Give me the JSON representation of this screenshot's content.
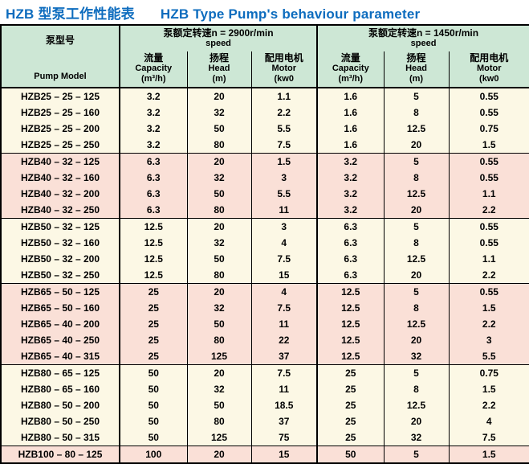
{
  "title": {
    "zh": "HZB 型泵工作性能表",
    "en": "HZB Type Pump's behaviour parameter"
  },
  "colors": {
    "title_blue": "#0d6cbe",
    "header_green": "#cde7d5",
    "row_cream": "#fcf8e5",
    "row_pink": "#fae0d7",
    "border": "#000000"
  },
  "table": {
    "model_header": {
      "zh": "泵型号",
      "en": "Pump Model"
    },
    "sections": [
      {
        "line1": "泵额定转速n = 2900r/min",
        "line2": "speed"
      },
      {
        "line1": "泵额定转速n = 1450r/min",
        "line2": "speed"
      }
    ],
    "subcolumns": [
      {
        "zh": "流量",
        "en": "Capacity",
        "unit": "(m³/h)"
      },
      {
        "zh": "扬程",
        "en": "Head",
        "unit": "(m)"
      },
      {
        "zh": "配用电机",
        "en": "Motor",
        "unit": "(kw0"
      }
    ],
    "rows": [
      {
        "model": "HZB25 – 25 – 125",
        "group": 0,
        "values": [
          "3.2",
          "20",
          "1.1",
          "1.6",
          "5",
          "0.55"
        ]
      },
      {
        "model": "HZB25 – 25 – 160",
        "group": 0,
        "values": [
          "3.2",
          "32",
          "2.2",
          "1.6",
          "8",
          "0.55"
        ]
      },
      {
        "model": "HZB25 – 25 – 200",
        "group": 0,
        "values": [
          "3.2",
          "50",
          "5.5",
          "1.6",
          "12.5",
          "0.75"
        ]
      },
      {
        "model": "HZB25 – 25 – 250",
        "group": 0,
        "values": [
          "3.2",
          "80",
          "7.5",
          "1.6",
          "20",
          "1.5"
        ]
      },
      {
        "model": "HZB40 – 32 – 125",
        "group": 1,
        "values": [
          "6.3",
          "20",
          "1.5",
          "3.2",
          "5",
          "0.55"
        ]
      },
      {
        "model": "HZB40 – 32 – 160",
        "group": 1,
        "values": [
          "6.3",
          "32",
          "3",
          "3.2",
          "8",
          "0.55"
        ]
      },
      {
        "model": "HZB40 – 32 – 200",
        "group": 1,
        "values": [
          "6.3",
          "50",
          "5.5",
          "3.2",
          "12.5",
          "1.1"
        ]
      },
      {
        "model": "HZB40 – 32 – 250",
        "group": 1,
        "values": [
          "6.3",
          "80",
          "11",
          "3.2",
          "20",
          "2.2"
        ]
      },
      {
        "model": "HZB50 – 32 – 125",
        "group": 2,
        "values": [
          "12.5",
          "20",
          "3",
          "6.3",
          "5",
          "0.55"
        ]
      },
      {
        "model": "HZB50 – 32 – 160",
        "group": 2,
        "values": [
          "12.5",
          "32",
          "4",
          "6.3",
          "8",
          "0.55"
        ]
      },
      {
        "model": "HZB50 – 32 – 200",
        "group": 2,
        "values": [
          "12.5",
          "50",
          "7.5",
          "6.3",
          "12.5",
          "1.1"
        ]
      },
      {
        "model": "HZB50 – 32 – 250",
        "group": 2,
        "values": [
          "12.5",
          "80",
          "15",
          "6.3",
          "20",
          "2.2"
        ]
      },
      {
        "model": "HZB65 – 50 – 125",
        "group": 3,
        "values": [
          "25",
          "20",
          "4",
          "12.5",
          "5",
          "0.55"
        ]
      },
      {
        "model": "HZB65 – 50 – 160",
        "group": 3,
        "values": [
          "25",
          "32",
          "7.5",
          "12.5",
          "8",
          "1.5"
        ]
      },
      {
        "model": "HZB65 – 40 – 200",
        "group": 3,
        "values": [
          "25",
          "50",
          "11",
          "12.5",
          "12.5",
          "2.2"
        ]
      },
      {
        "model": "HZB65 – 40 – 250",
        "group": 3,
        "values": [
          "25",
          "80",
          "22",
          "12.5",
          "20",
          "3"
        ]
      },
      {
        "model": "HZB65 – 40 – 315",
        "group": 3,
        "values": [
          "25",
          "125",
          "37",
          "12.5",
          "32",
          "5.5"
        ]
      },
      {
        "model": "HZB80 – 65 – 125",
        "group": 4,
        "values": [
          "50",
          "20",
          "7.5",
          "25",
          "5",
          "0.75"
        ]
      },
      {
        "model": "HZB80 – 65 – 160",
        "group": 4,
        "values": [
          "50",
          "32",
          "11",
          "25",
          "8",
          "1.5"
        ]
      },
      {
        "model": "HZB80 – 50 – 200",
        "group": 4,
        "values": [
          "50",
          "50",
          "18.5",
          "25",
          "12.5",
          "2.2"
        ]
      },
      {
        "model": "HZB80 – 50 – 250",
        "group": 4,
        "values": [
          "50",
          "80",
          "37",
          "25",
          "20",
          "4"
        ]
      },
      {
        "model": "HZB80 – 50 – 315",
        "group": 4,
        "values": [
          "50",
          "125",
          "75",
          "25",
          "32",
          "7.5"
        ]
      },
      {
        "model": "HZB100 – 80 – 125",
        "group": 5,
        "values": [
          "100",
          "20",
          "15",
          "50",
          "5",
          "1.5"
        ]
      }
    ]
  }
}
